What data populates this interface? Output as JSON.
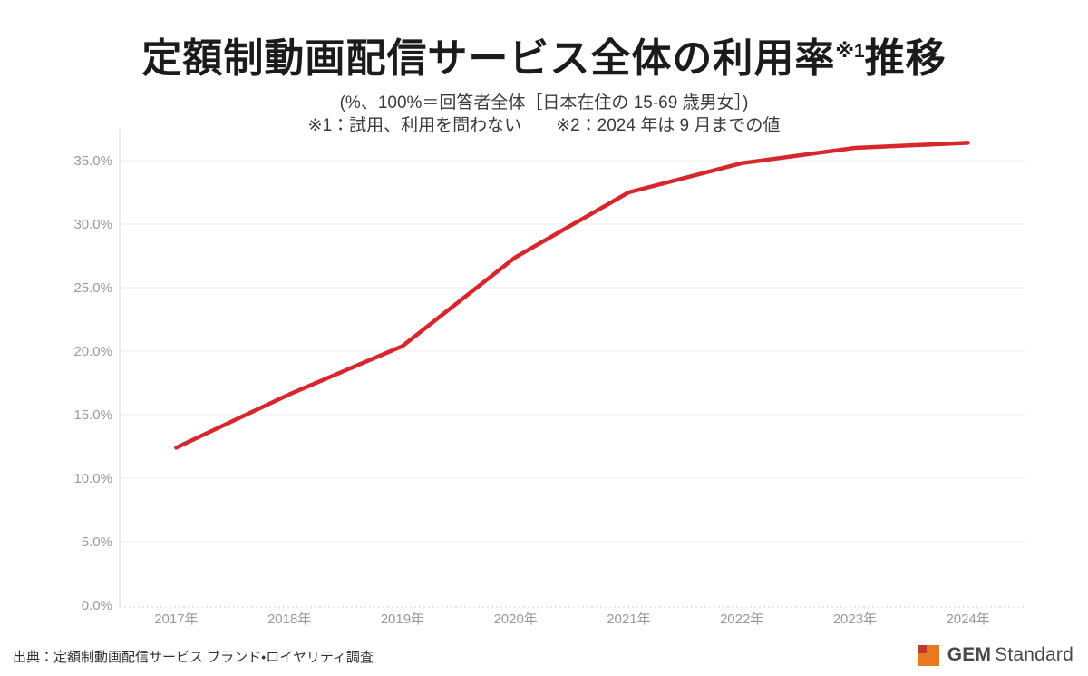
{
  "header": {
    "title_main": "定額制動画配信サービス全体の利用率",
    "title_sup": "※1",
    "title_tail": "推移",
    "subtitle_line1": "(%、100%＝回答者全体［日本在住の 15-69 歳男女］)",
    "subtitle_line2": "※1：試用、利用を問わない　　※2：2024 年は 9 月までの値"
  },
  "chart_data": {
    "type": "line",
    "title": "定額制動画配信サービス全体の利用率※1推移",
    "categories": [
      "2017年",
      "2018年",
      "2019年",
      "2020年",
      "2021年",
      "2022年",
      "2023年",
      "2024年"
    ],
    "series": [
      {
        "name": "定額制動画配信サービス全体の利用率",
        "values": [
          12.4,
          16.6,
          20.4,
          27.4,
          32.5,
          34.8,
          36.0,
          36.4
        ]
      }
    ],
    "unit": "%",
    "ylim": [
      0,
      37.5
    ],
    "ytick_values": [
      0,
      5,
      10,
      15,
      20,
      25,
      30,
      35
    ],
    "ytick_labels": [
      "0.0%",
      "5.0%",
      "10.0%",
      "15.0%",
      "20.0%",
      "25.0%",
      "30.0%",
      "35.0%"
    ],
    "grid": true,
    "legend": "none",
    "line_color": "#d7262c",
    "gridline_color": "#ededed",
    "axis_color": "#d8d8d8",
    "tick_label_color": "#999999"
  },
  "footer": {
    "source": "出典：定額制動画配信サービス ブランド・ロイヤリティ調査",
    "logo_bold": "GEM",
    "logo_regular": "Standard",
    "logo_square_color": "#e8791f",
    "logo_corner_color": "#bf3a2b",
    "logo_text_color": "#47474f"
  }
}
